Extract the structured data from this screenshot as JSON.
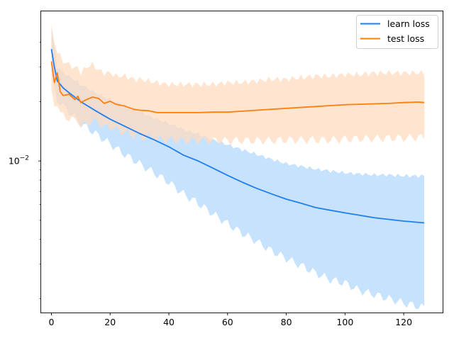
{
  "chart_data": {
    "type": "line",
    "title": "",
    "xlabel": "",
    "ylabel": "",
    "xlim": [
      -3.5,
      133.5
    ],
    "ylim": [
      0.0017,
      0.0575
    ],
    "yscale": "log",
    "grid": false,
    "legend_position": "top-right",
    "x_ticks": [
      0,
      20,
      40,
      60,
      80,
      100,
      120
    ],
    "x_tick_labels": [
      "0",
      "20",
      "40",
      "60",
      "80",
      "100",
      "120"
    ],
    "y_major_ticks": [
      0.01
    ],
    "y_tick_base": "10",
    "y_tick_exponent": "−2",
    "y_minor_ticks": [
      0.002,
      0.003,
      0.004,
      0.005,
      0.006,
      0.007,
      0.008,
      0.009,
      0.02,
      0.03,
      0.04
    ],
    "series": [
      {
        "name": "learn loss",
        "color": "#1f7ff0",
        "band_color": "#b9dbfd",
        "keypoints_x": [
          0,
          1,
          2,
          4,
          6,
          10,
          15,
          20,
          25,
          30,
          35,
          40,
          45,
          50,
          55,
          60,
          65,
          70,
          75,
          80,
          85,
          90,
          95,
          100,
          105,
          110,
          115,
          120,
          127
        ],
        "keypoints_mean": [
          0.037,
          0.03,
          0.0255,
          0.0235,
          0.0222,
          0.02,
          0.018,
          0.0163,
          0.015,
          0.0138,
          0.0128,
          0.0118,
          0.0107,
          0.01,
          0.0092,
          0.00845,
          0.0078,
          0.00725,
          0.0068,
          0.0064,
          0.0061,
          0.0058,
          0.00562,
          0.00545,
          0.0053,
          0.00515,
          0.00505,
          0.00495,
          0.00485
        ],
        "keypoints_upper": [
          0.047,
          0.038,
          0.03,
          0.028,
          0.027,
          0.0245,
          0.0222,
          0.0205,
          0.019,
          0.0178,
          0.0165,
          0.0155,
          0.0145,
          0.0137,
          0.0128,
          0.0121,
          0.0114,
          0.0108,
          0.0102,
          0.0097,
          0.0094,
          0.0091,
          0.0089,
          0.0087,
          0.0086,
          0.0085,
          0.0085,
          0.0084,
          0.0084
        ],
        "keypoints_lower": [
          0.028,
          0.023,
          0.0205,
          0.019,
          0.0178,
          0.0155,
          0.0138,
          0.0122,
          0.0108,
          0.0097,
          0.0087,
          0.0078,
          0.0068,
          0.0061,
          0.0054,
          0.0048,
          0.0043,
          0.0039,
          0.0035,
          0.0032,
          0.00295,
          0.0027,
          0.0025,
          0.0024,
          0.0022,
          0.0021,
          0.002,
          0.0019,
          0.0018
        ]
      },
      {
        "name": "test loss",
        "color": "#ff7f0e",
        "band_color": "#ffdbbf",
        "keypoints_x": [
          0,
          1,
          2,
          3,
          4,
          6,
          8,
          9,
          10,
          12,
          14,
          16,
          18,
          20,
          22,
          25,
          28,
          30,
          33,
          36,
          40,
          45,
          50,
          55,
          60,
          65,
          70,
          75,
          80,
          85,
          90,
          95,
          100,
          105,
          110,
          115,
          120,
          125,
          127
        ],
        "keypoints_mean": [
          0.032,
          0.025,
          0.028,
          0.0225,
          0.0215,
          0.0218,
          0.0205,
          0.0213,
          0.0198,
          0.0205,
          0.0211,
          0.0208,
          0.0196,
          0.0201,
          0.0194,
          0.019,
          0.0183,
          0.0181,
          0.018,
          0.0176,
          0.0176,
          0.0176,
          0.0176,
          0.0177,
          0.0177,
          0.0179,
          0.0181,
          0.0183,
          0.0185,
          0.0187,
          0.0189,
          0.0191,
          0.0193,
          0.0194,
          0.0195,
          0.0196,
          0.0198,
          0.0199,
          0.0198
        ],
        "keypoints_upper": [
          0.048,
          0.04,
          0.036,
          0.034,
          0.032,
          0.031,
          0.0295,
          0.03,
          0.028,
          0.03,
          0.031,
          0.029,
          0.028,
          0.028,
          0.027,
          0.027,
          0.026,
          0.026,
          0.0255,
          0.025,
          0.0245,
          0.0245,
          0.0245,
          0.0245,
          0.025,
          0.025,
          0.0255,
          0.026,
          0.026,
          0.0265,
          0.027,
          0.027,
          0.0275,
          0.0275,
          0.028,
          0.028,
          0.028,
          0.028,
          0.028
        ],
        "keypoints_lower": [
          0.022,
          0.019,
          0.02,
          0.0175,
          0.0168,
          0.0165,
          0.016,
          0.0162,
          0.015,
          0.0155,
          0.016,
          0.0158,
          0.0148,
          0.015,
          0.0144,
          0.014,
          0.0135,
          0.0133,
          0.0132,
          0.0129,
          0.0128,
          0.0127,
          0.0127,
          0.0127,
          0.0127,
          0.0127,
          0.0127,
          0.0127,
          0.0128,
          0.0128,
          0.0128,
          0.0128,
          0.0129,
          0.013,
          0.013,
          0.0131,
          0.0131,
          0.0132,
          0.0132
        ]
      }
    ]
  }
}
